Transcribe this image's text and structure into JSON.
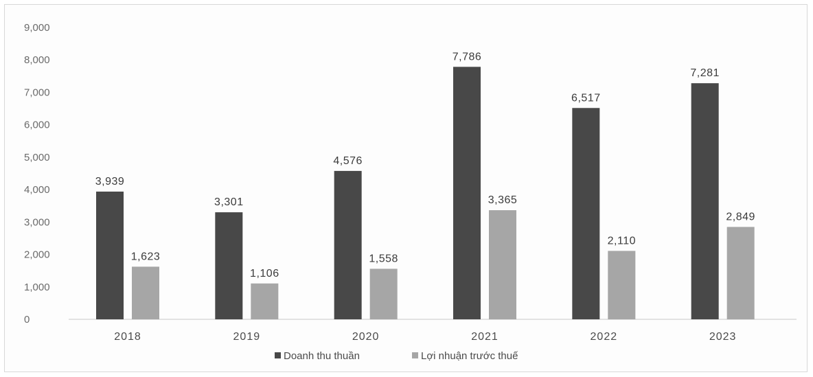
{
  "chart_data": {
    "type": "bar",
    "categories": [
      "2018",
      "2019",
      "2020",
      "2021",
      "2022",
      "2023"
    ],
    "series": [
      {
        "name": "Doanh thu thuần",
        "values": [
          3939,
          3301,
          4576,
          7786,
          6517,
          7281
        ],
        "labels": [
          "3,939",
          "3,301",
          "4,576",
          "7,786",
          "6,517",
          "7,281"
        ],
        "color": "#484848"
      },
      {
        "name": "Lợi nhuận trước thuế",
        "values": [
          1623,
          1106,
          1558,
          3365,
          2110,
          2849
        ],
        "labels": [
          "1,623",
          "1,106",
          "1,558",
          "3,365",
          "2,110",
          "2,849"
        ],
        "color": "#a6a6a6"
      }
    ],
    "y_ticks": [
      0,
      1000,
      2000,
      3000,
      4000,
      5000,
      6000,
      7000,
      8000,
      9000
    ],
    "y_tick_labels": [
      "0",
      "1,000",
      "2,000",
      "3,000",
      "4,000",
      "5,000",
      "6,000",
      "7,000",
      "8,000",
      "9,000"
    ],
    "ylim": [
      0,
      9000
    ],
    "grid": false,
    "legend_position": "bottom"
  }
}
